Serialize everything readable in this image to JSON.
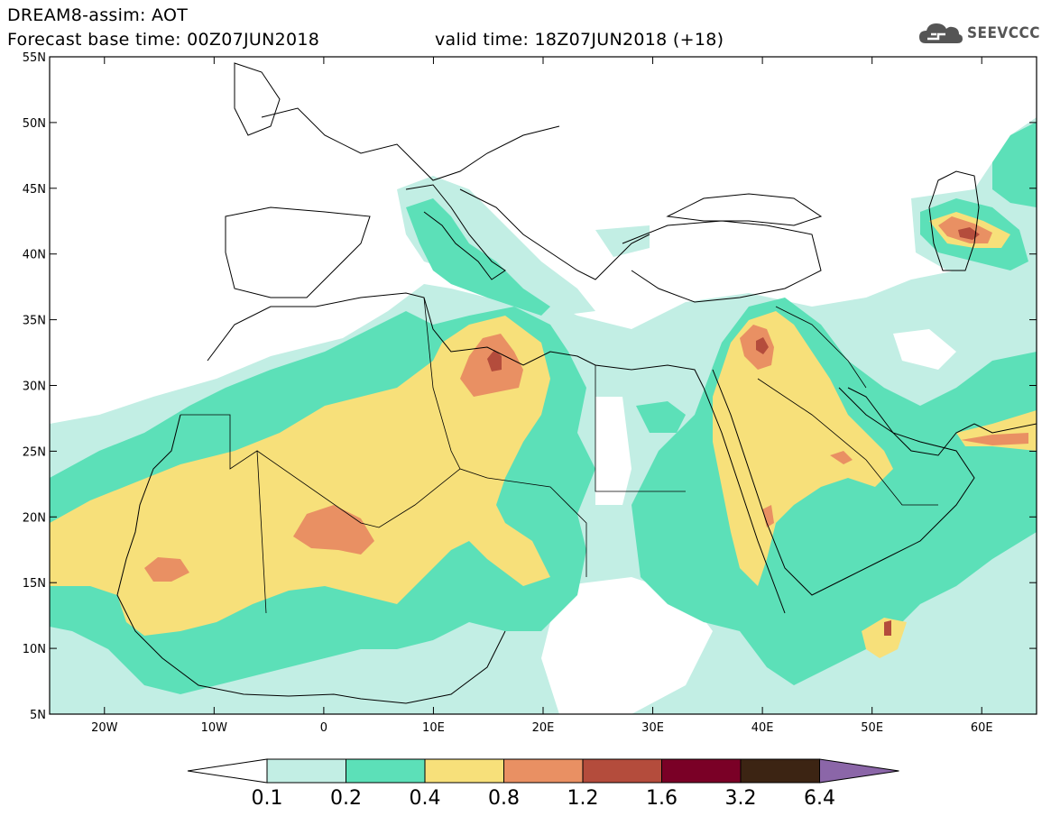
{
  "header": {
    "title": "DREAM8-assim: AOT",
    "base_time": "Forecast base time: 00Z07JUN2018",
    "valid_time": "valid time: 18Z07JUN2018 (+18)"
  },
  "logo": {
    "icon": "cloud-icon",
    "text": "SEEVCCC"
  },
  "axes": {
    "lon_range": [
      -25,
      65
    ],
    "lat_range": [
      5,
      55
    ],
    "x_ticks": [
      {
        "lon": -20,
        "label": "20W"
      },
      {
        "lon": -10,
        "label": "10W"
      },
      {
        "lon": 0,
        "label": "0"
      },
      {
        "lon": 10,
        "label": "10E"
      },
      {
        "lon": 20,
        "label": "20E"
      },
      {
        "lon": 30,
        "label": "30E"
      },
      {
        "lon": 40,
        "label": "40E"
      },
      {
        "lon": 50,
        "label": "50E"
      },
      {
        "lon": 60,
        "label": "60E"
      }
    ],
    "y_ticks": [
      {
        "lat": 5,
        "label": "5N"
      },
      {
        "lat": 10,
        "label": "10N"
      },
      {
        "lat": 15,
        "label": "15N"
      },
      {
        "lat": 20,
        "label": "20N"
      },
      {
        "lat": 25,
        "label": "25N"
      },
      {
        "lat": 30,
        "label": "30N"
      },
      {
        "lat": 35,
        "label": "35N"
      },
      {
        "lat": 40,
        "label": "40N"
      },
      {
        "lat": 45,
        "label": "45N"
      },
      {
        "lat": 50,
        "label": "50N"
      },
      {
        "lat": 55,
        "label": "55N"
      }
    ]
  },
  "colorbar": {
    "colors": [
      "#ffffff",
      "#c2eee4",
      "#5ce0b8",
      "#f7e07a",
      "#e99063",
      "#b44c3c",
      "#7a0026",
      "#3c2413",
      "#8b66a8"
    ],
    "labels": [
      "0.1",
      "0.2",
      "0.4",
      "0.8",
      "1.2",
      "1.6",
      "3.2",
      "6.4"
    ]
  },
  "colors": {
    "level1": "#c2eee4",
    "level2": "#5ce0b8",
    "level3": "#f7e07a",
    "level4": "#e99063",
    "level5": "#b44c3c",
    "level6": "#7a0026"
  }
}
